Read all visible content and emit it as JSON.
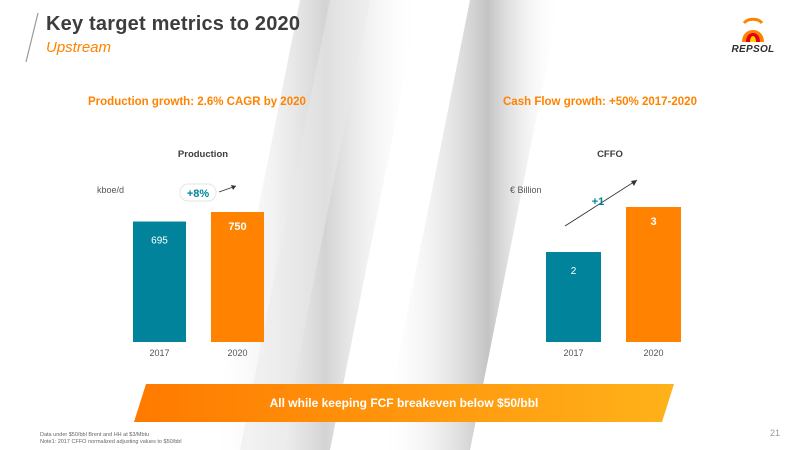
{
  "header": {
    "title": "Key target metrics to 2020",
    "subtitle": "Upstream"
  },
  "logo": {
    "text": "REPSOL",
    "colors": [
      "#ff8200",
      "#e2001a",
      "#ffd100"
    ]
  },
  "left_panel": {
    "headline": "Production growth: 2.6% CAGR by 2020"
  },
  "right_panel": {
    "headline": "Cash Flow growth: +50% 2017-2020"
  },
  "banner": {
    "text": "All while keeping FCF breakeven below $50/bbl"
  },
  "notes": {
    "line1": "Data under $50/bbl Brent and HH at $3/Mbtu",
    "line2": "Note1: 2017 CFFO normalized adjusting values to $50/bbl"
  },
  "page_number": "21",
  "colors": {
    "teal": "#00839b",
    "orange": "#ff8200",
    "title": "#3d3d3d"
  },
  "chart_data": [
    {
      "type": "bar",
      "title": "Production",
      "ylabel": "kboe/d",
      "categories": [
        "2017",
        "2020"
      ],
      "values": [
        695,
        750
      ],
      "labels": [
        "695",
        "750"
      ],
      "colors": [
        "#00839b",
        "#ff8200"
      ],
      "ylim": [
        0,
        750
      ],
      "annotation": "+8%"
    },
    {
      "type": "bar",
      "title": "CFFO",
      "ylabel": "€ Billion",
      "categories": [
        "2017",
        "2020"
      ],
      "values": [
        2,
        3
      ],
      "labels": [
        "2",
        "3"
      ],
      "colors": [
        "#00839b",
        "#ff8200"
      ],
      "ylim": [
        0,
        3
      ],
      "annotation": "+1"
    }
  ]
}
